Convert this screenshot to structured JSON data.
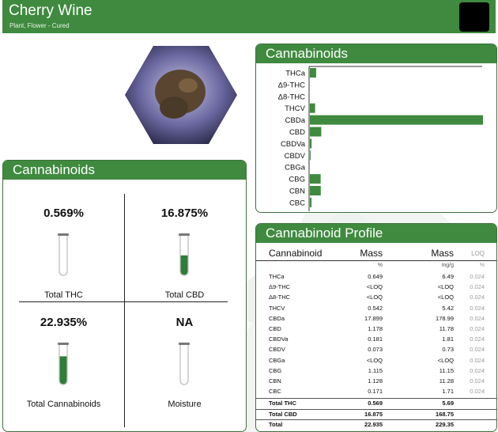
{
  "colors": {
    "brand_green": "#3f8a3f",
    "bar_green": "#3f8a3f",
    "fill_green": "#2e7d3a"
  },
  "header": {
    "title": "Cherry Wine",
    "subtitle": "Plant, Flower - Cured"
  },
  "bar_panel": {
    "title": "Cannabinoids"
  },
  "chart_data": {
    "type": "bar",
    "orientation": "horizontal",
    "categories": [
      "THCa",
      "Δ9-THC",
      "Δ8-THC",
      "THCV",
      "CBDa",
      "CBD",
      "CBDVa",
      "CBDV",
      "CBGa",
      "CBG",
      "CBN",
      "CBC"
    ],
    "values": [
      0.649,
      0,
      0,
      0.542,
      17.899,
      1.178,
      0.181,
      0.073,
      0,
      1.115,
      1.128,
      0.171
    ],
    "xlim": [
      0,
      17.899
    ],
    "grid": false,
    "legend": "none"
  },
  "summary": {
    "title": "Cannabinoids",
    "cells": [
      {
        "value": "0.569%",
        "label": "Total THC",
        "fill": 0.0
      },
      {
        "value": "16.875%",
        "label": "Total CBD",
        "fill": 0.45
      },
      {
        "value": "22.935%",
        "label": "Total Cannabinoids",
        "fill": 0.68
      },
      {
        "value": "NA",
        "label": "Moisture",
        "fill": 0.0
      }
    ]
  },
  "profile": {
    "title": "Cannabinoid Profile",
    "headers": [
      "Cannabinoid",
      "Mass",
      "Mass",
      "LOQ"
    ],
    "units": [
      "",
      "%",
      "mg/g",
      "%"
    ],
    "rows": [
      {
        "name": "THCa",
        "pct": "0.649",
        "mg": "6.49",
        "loq": "0.024"
      },
      {
        "name": "Δ9-THC",
        "pct": "<LOQ",
        "mg": "<LOQ",
        "loq": "0.024"
      },
      {
        "name": "Δ8-THC",
        "pct": "<LOQ",
        "mg": "<LOQ",
        "loq": "0.024"
      },
      {
        "name": "THCV",
        "pct": "0.542",
        "mg": "5.42",
        "loq": "0.024"
      },
      {
        "name": "CBDa",
        "pct": "17.899",
        "mg": "178.99",
        "loq": "0.024"
      },
      {
        "name": "CBD",
        "pct": "1.178",
        "mg": "11.78",
        "loq": "0.024"
      },
      {
        "name": "CBDVa",
        "pct": "0.181",
        "mg": "1.81",
        "loq": "0.024"
      },
      {
        "name": "CBDV",
        "pct": "0.073",
        "mg": "0.73",
        "loq": "0.024"
      },
      {
        "name": "CBGa",
        "pct": "<LOQ",
        "mg": "<LOQ",
        "loq": "0.024"
      },
      {
        "name": "CBG",
        "pct": "1.115",
        "mg": "11.15",
        "loq": "0.024"
      },
      {
        "name": "CBN",
        "pct": "1.128",
        "mg": "11.28",
        "loq": "0.024"
      },
      {
        "name": "CBC",
        "pct": "0.171",
        "mg": "1.71",
        "loq": "0.024"
      }
    ],
    "totals": [
      {
        "name": "Total THC",
        "pct": "0.569",
        "mg": "5.69"
      },
      {
        "name": "Total CBD",
        "pct": "16.875",
        "mg": "168.75"
      },
      {
        "name": "Total",
        "pct": "22.935",
        "mg": "229.35"
      }
    ]
  }
}
